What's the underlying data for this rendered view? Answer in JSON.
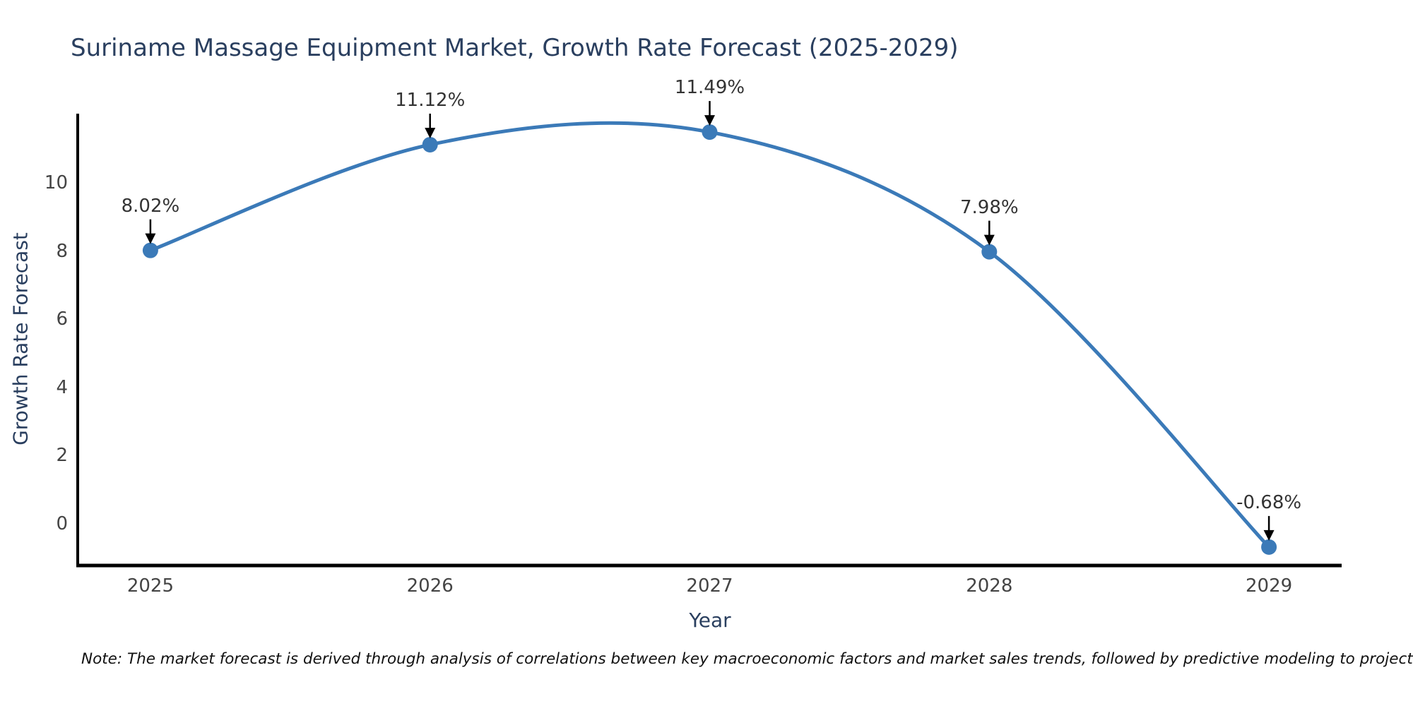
{
  "title": "Suriname Massage Equipment Market, Growth Rate Forecast (2025-2029)",
  "note": {
    "text": "Note: The market forecast is derived through analysis of correlations between key macroeconomic factors and market sales trends, followed by predictive modeling to project future sales"
  },
  "chart_data": {
    "type": "line",
    "line_shape": "spline",
    "title": "Suriname Massage Equipment Market, Growth Rate Forecast (2025-2029)",
    "xlabel": "Year",
    "ylabel": "Growth Rate Forecast",
    "categories": [
      "2025",
      "2026",
      "2027",
      "2028",
      "2029"
    ],
    "values": [
      8.02,
      11.12,
      11.49,
      7.98,
      -0.68
    ],
    "annotations": [
      "8.02%",
      "11.12%",
      "11.49%",
      "7.98%",
      "-0.68%"
    ],
    "yticks": [
      0,
      2,
      4,
      6,
      8,
      10
    ],
    "ylim": [
      -1.2,
      12.03
    ],
    "x_padding": 0.26,
    "grid": false,
    "legend": "none",
    "colors": {
      "line": "#3b7ab8",
      "marker": "#3b7ab8",
      "axis": "#000000",
      "arrow": "#000000",
      "title_text": "#2a3f5f",
      "axis_label_text": "#2a3f5f",
      "tick_text": "#444444",
      "annotation_text": "#333333",
      "note_text": "#111111",
      "background": "#ffffff"
    }
  }
}
